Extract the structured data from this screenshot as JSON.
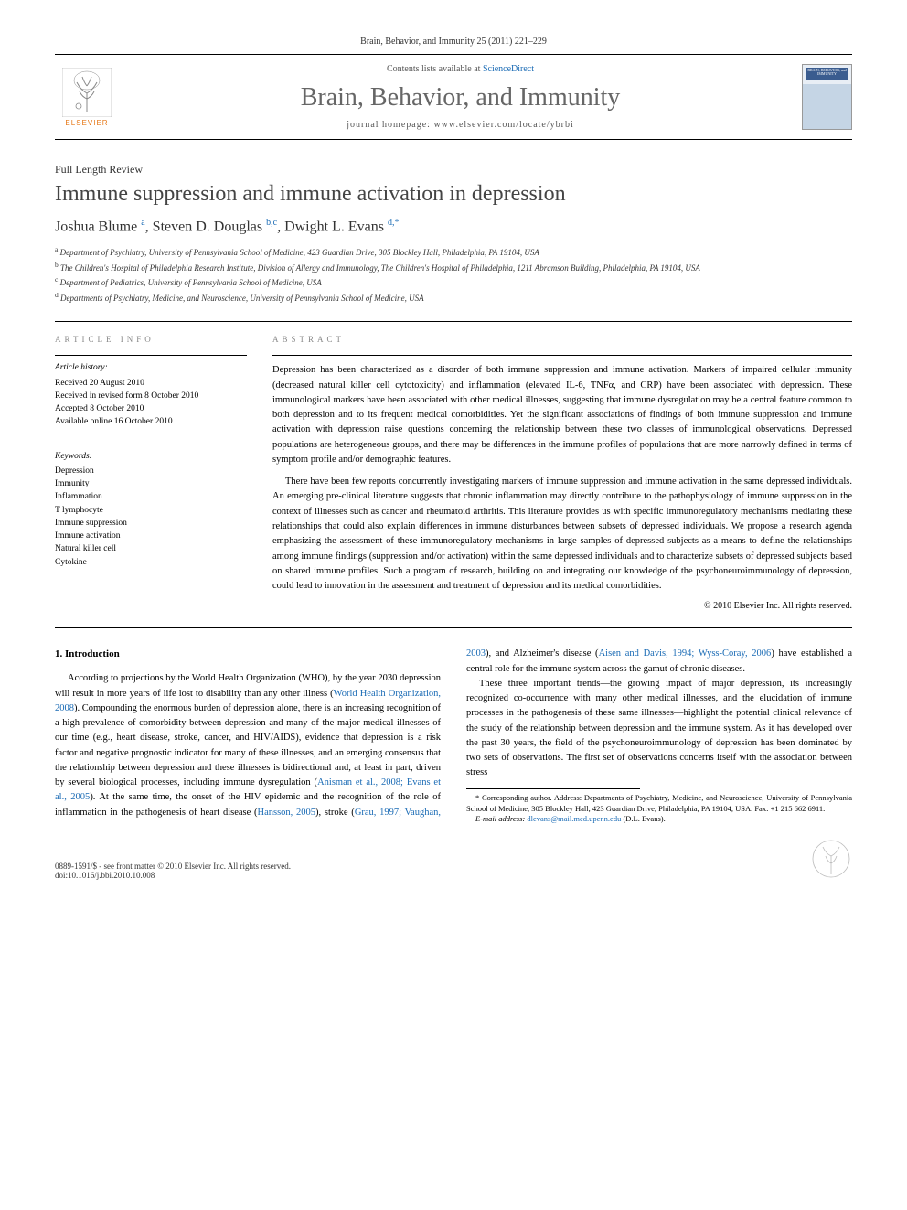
{
  "journal_ref": {
    "journal": "Brain, Behavior, and Immunity",
    "volume": "25",
    "year": "(2011)",
    "pages": "221–229"
  },
  "header": {
    "publisher_name": "ELSEVIER",
    "contents_prefix": "Contents lists available at ",
    "contents_link": "ScienceDirect",
    "journal_name": "Brain, Behavior, and Immunity",
    "homepage_prefix": "journal homepage: ",
    "homepage_url": "www.elsevier.com/locate/ybrbi",
    "cover_text": "BRAIN, BEHAVIOR, and IMMUNITY"
  },
  "article": {
    "type": "Full Length Review",
    "title": "Immune suppression and immune activation in depression",
    "authors_html": "Joshua Blume <sup>a</sup>, Steven D. Douglas <sup>b,c</sup>, Dwight L. Evans <sup>d,*</sup>",
    "affiliations": [
      {
        "key": "a",
        "text": "Department of Psychiatry, University of Pennsylvania School of Medicine, 423 Guardian Drive, 305 Blockley Hall, Philadelphia, PA 19104, USA"
      },
      {
        "key": "b",
        "text": "The Children's Hospital of Philadelphia Research Institute, Division of Allergy and Immunology, The Children's Hospital of Philadelphia, 1211 Abramson Building, Philadelphia, PA 19104, USA"
      },
      {
        "key": "c",
        "text": "Department of Pediatrics, University of Pennsylvania School of Medicine, USA"
      },
      {
        "key": "d",
        "text": "Departments of Psychiatry, Medicine, and Neuroscience, University of Pennsylvania School of Medicine, USA"
      }
    ]
  },
  "info": {
    "label": "ARTICLE INFO",
    "history_header": "Article history:",
    "history": [
      "Received 20 August 2010",
      "Received in revised form 8 October 2010",
      "Accepted 8 October 2010",
      "Available online 16 October 2010"
    ],
    "keywords_header": "Keywords:",
    "keywords": [
      "Depression",
      "Immunity",
      "Inflammation",
      "T lymphocyte",
      "Immune suppression",
      "Immune activation",
      "Natural killer cell",
      "Cytokine"
    ]
  },
  "abstract": {
    "label": "ABSTRACT",
    "paragraphs": [
      "Depression has been characterized as a disorder of both immune suppression and immune activation. Markers of impaired cellular immunity (decreased natural killer cell cytotoxicity) and inflammation (elevated IL-6, TNFα, and CRP) have been associated with depression. These immunological markers have been associated with other medical illnesses, suggesting that immune dysregulation may be a central feature common to both depression and to its frequent medical comorbidities. Yet the significant associations of findings of both immune suppression and immune activation with depression raise questions concerning the relationship between these two classes of immunological observations. Depressed populations are heterogeneous groups, and there may be differences in the immune profiles of populations that are more narrowly defined in terms of symptom profile and/or demographic features.",
      "There have been few reports concurrently investigating markers of immune suppression and immune activation in the same depressed individuals. An emerging pre-clinical literature suggests that chronic inflammation may directly contribute to the pathophysiology of immune suppression in the context of illnesses such as cancer and rheumatoid arthritis. This literature provides us with specific immunoregulatory mechanisms mediating these relationships that could also explain differences in immune disturbances between subsets of depressed individuals. We propose a research agenda emphasizing the assessment of these immunoregulatory mechanisms in large samples of depressed subjects as a means to define the relationships among immune findings (suppression and/or activation) within the same depressed individuals and to characterize subsets of depressed subjects based on shared immune profiles. Such a program of research, building on and integrating our knowledge of the psychoneuroimmunology of depression, could lead to innovation in the assessment and treatment of depression and its medical comorbidities."
    ],
    "copyright": "© 2010 Elsevier Inc. All rights reserved."
  },
  "body": {
    "section_number": "1.",
    "section_title": "Introduction",
    "p1_pre": "According to projections by the World Health Organization (WHO), by the year 2030 depression will result in more years of life lost to disability than any other illness (",
    "p1_ref1": "World Health Organization, 2008",
    "p1_post": "). Compounding the enormous burden of depression alone, there is an increasing recognition of a high prevalence of comorbidity between depression and many of the major medical illnesses of our time (e.g., heart disease, stroke, cancer, and HIV/AIDS), evidence that depression is a risk factor and negative prognostic indicator for many of these illnesses, and an emerging consensus that the relationship between depression and these illnesses is bidirec",
    "p2_a": "tional and, at least in part, driven by several biological processes, including immune dysregulation (",
    "p2_ref1": "Anisman et al., 2008; Evans et al., 2005",
    "p2_b": "). At the same time, the onset of the HIV epidemic and the recognition of the role of inflammation in the pathogenesis of heart disease (",
    "p2_ref2": "Hansson, 2005",
    "p2_c": "), stroke (",
    "p2_ref3": "Grau, 1997; Vaughan, 2003",
    "p2_d": "), and Alzheimer's disease (",
    "p2_ref4": "Aisen and Davis, 1994; Wyss-Coray, 2006",
    "p2_e": ") have established a central role for the immune system across the gamut of chronic diseases.",
    "p3": "These three important trends—the growing impact of major depression, its increasingly recognized co-occurrence with many other medical illnesses, and the elucidation of immune processes in the pathogenesis of these same illnesses—highlight the potential clinical relevance of the study of the relationship between depression and the immune system. As it has developed over the past 30 years, the field of the psychoneuroimmunology of depression has been dominated by two sets of observations. The first set of observations concerns itself with the association between stress"
  },
  "footnote": {
    "corr": "* Corresponding author. Address: Departments of Psychiatry, Medicine, and Neuroscience, University of Pennsylvania School of Medicine, 305 Blockley Hall, 423 Guardian Drive, Philadelphia, PA 19104, USA. Fax: +1 215 662 6911.",
    "email_label": "E-mail address: ",
    "email": "dlevans@mail.med.upenn.edu",
    "email_suffix": " (D.L. Evans)."
  },
  "footer": {
    "issn_line": "0889-1591/$ - see front matter © 2010 Elsevier Inc. All rights reserved.",
    "doi_line": "doi:10.1016/j.bbi.2010.10.008"
  },
  "colors": {
    "link": "#1a6bb5",
    "publisher_orange": "#e67817",
    "journal_gray": "#666666"
  }
}
